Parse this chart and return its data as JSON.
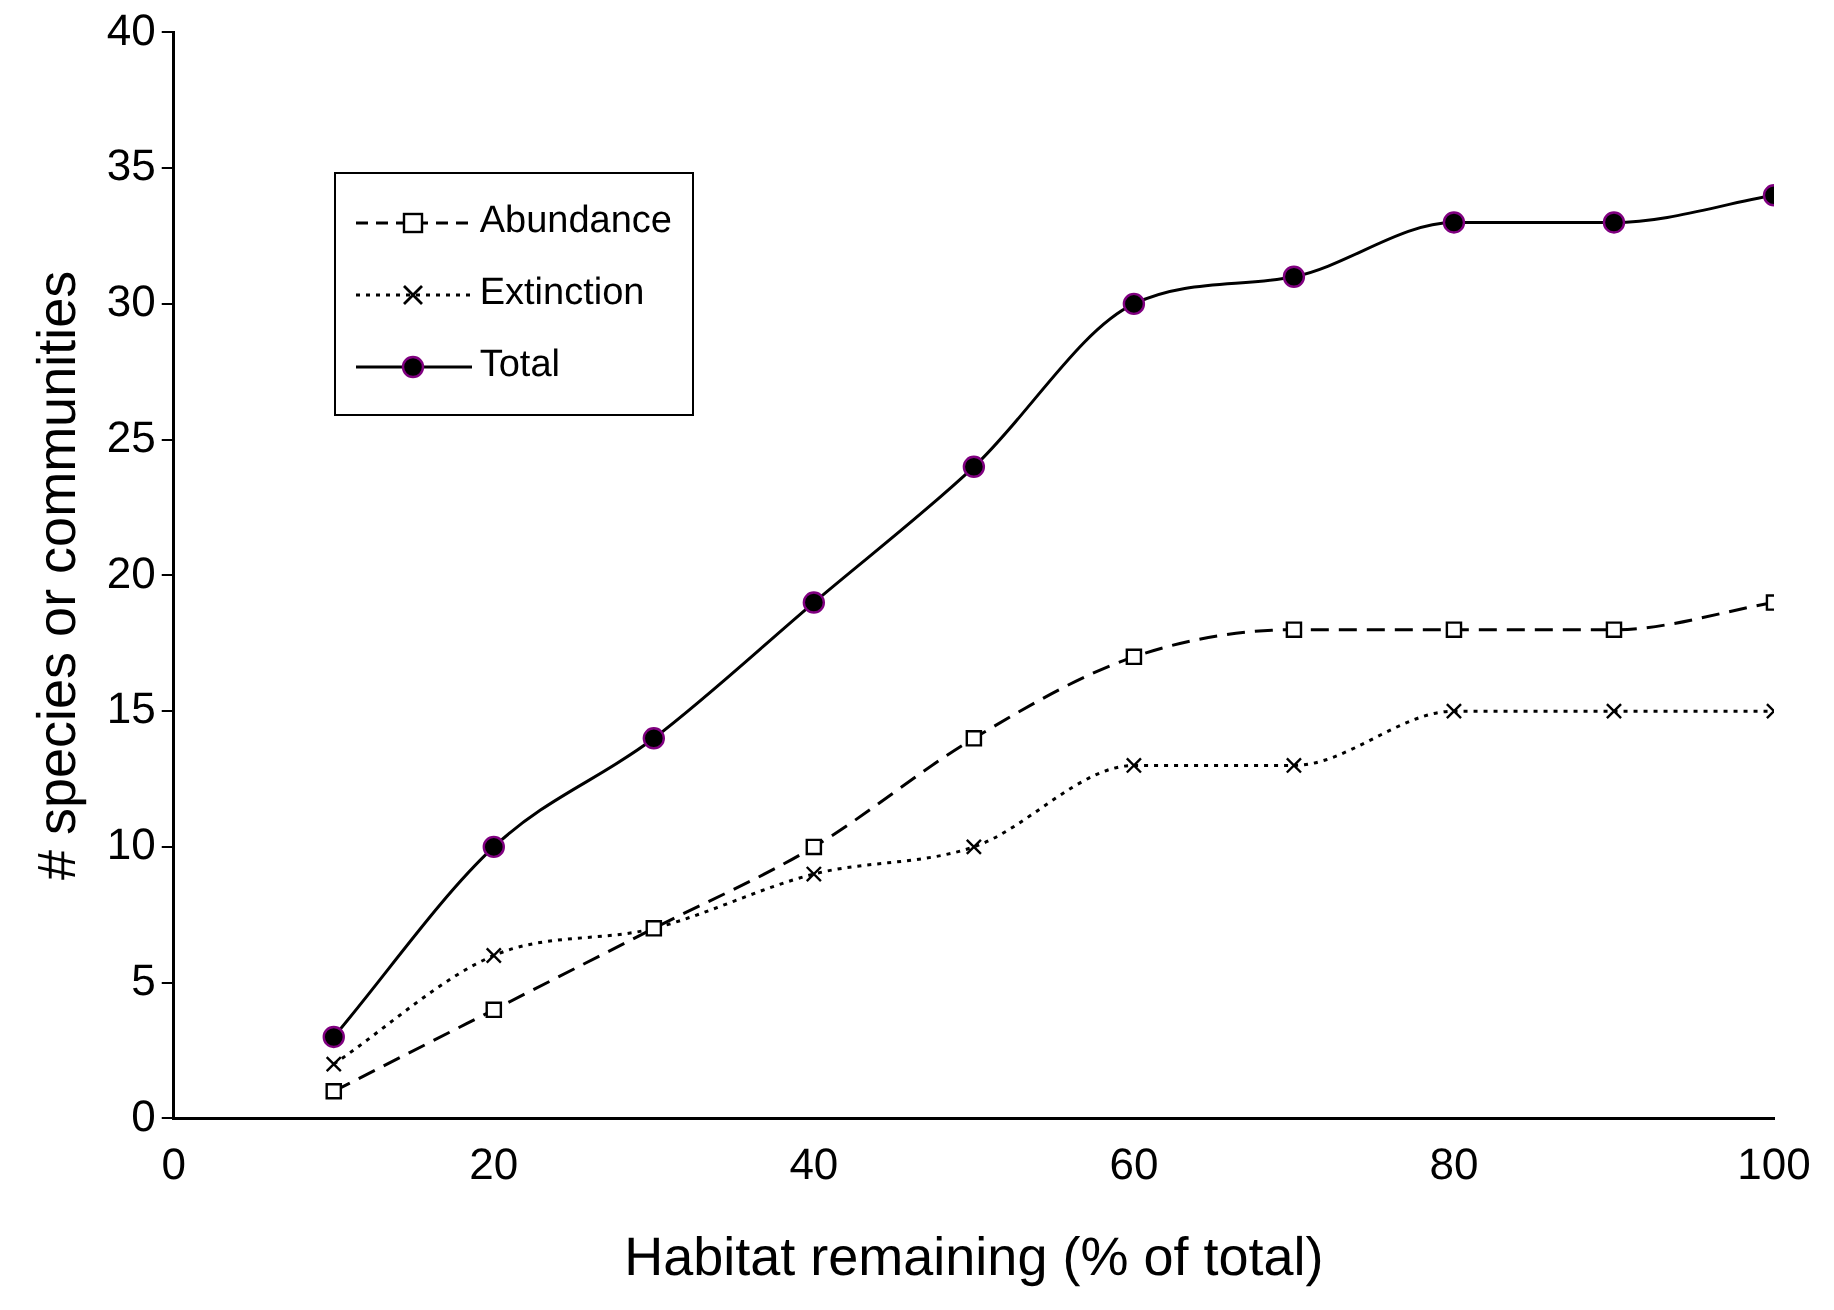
{
  "chart_data": {
    "type": "line",
    "xlabel": "Habitat remaining (% of total)",
    "ylabel": "# species or communities",
    "x": [
      10,
      20,
      30,
      40,
      50,
      60,
      70,
      80,
      90,
      100
    ],
    "series": [
      {
        "name": "Abundance",
        "color": "#000000",
        "values": [
          1,
          4,
          7,
          10,
          14,
          17,
          18,
          18,
          18,
          19
        ],
        "marker": "square",
        "line_style": "dashed"
      },
      {
        "name": "Extinction",
        "color": "#000000",
        "values": [
          2,
          6,
          7,
          9,
          10,
          13,
          13,
          15,
          15,
          15
        ],
        "marker": "cross",
        "line_style": "dotted"
      },
      {
        "name": "Total",
        "color": "#000000",
        "values": [
          3,
          10,
          14,
          19,
          24,
          30,
          31,
          33,
          33,
          34
        ],
        "marker": "circle",
        "line_style": "solid"
      }
    ],
    "xlim": [
      0,
      100
    ],
    "xticks": [
      0,
      20,
      40,
      60,
      80,
      100
    ],
    "ylim": [
      0,
      40
    ],
    "yticks": [
      0,
      5,
      10,
      15,
      20,
      25,
      30,
      35,
      40
    ],
    "grid": false,
    "legend": "top left"
  }
}
